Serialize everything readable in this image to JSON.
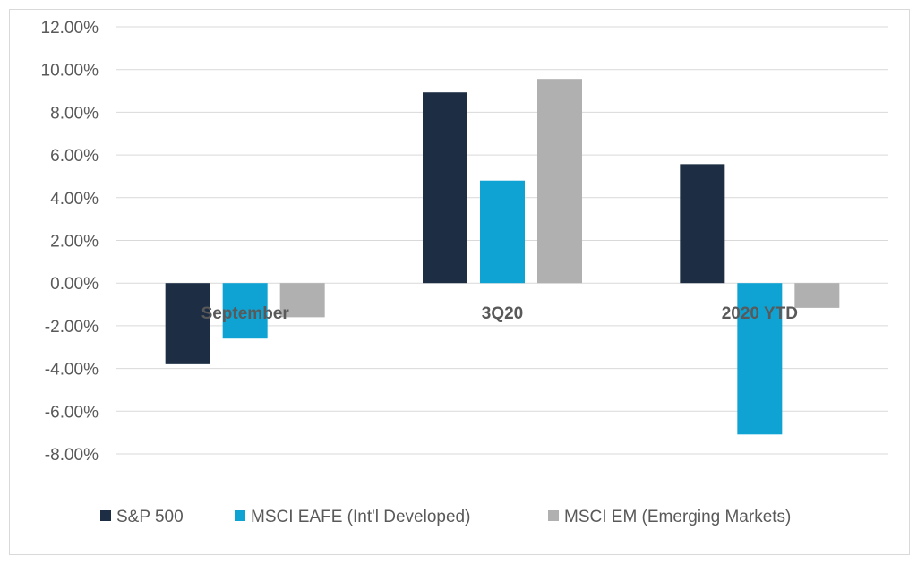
{
  "chart_data": {
    "type": "bar",
    "title": "",
    "xlabel": "",
    "ylabel": "",
    "categories": [
      "September",
      "3Q20",
      "2020 YTD"
    ],
    "series": [
      {
        "name": "S&P 500",
        "color": "#1c2d44",
        "values": [
          -3.8,
          8.93,
          5.57
        ]
      },
      {
        "name": "MSCI EAFE (Int'l Developed)",
        "color": "#0fa3d4",
        "values": [
          -2.6,
          4.8,
          -7.09
        ]
      },
      {
        "name": "MSCI EM (Emerging Markets)",
        "color": "#b0b0b0",
        "values": [
          -1.6,
          9.56,
          -1.16
        ]
      }
    ],
    "ylim": [
      -8,
      12
    ],
    "yticks": [
      12,
      10,
      8,
      6,
      4,
      2,
      0,
      -2,
      -4,
      -6,
      -8
    ],
    "ytick_labels": [
      "12.00%",
      "10.00%",
      "8.00%",
      "6.00%",
      "4.00%",
      "2.00%",
      "0.00%",
      "-2.00%",
      "-4.00%",
      "-6.00%",
      "-8.00%"
    ],
    "grid": true,
    "legend_position": "bottom"
  }
}
